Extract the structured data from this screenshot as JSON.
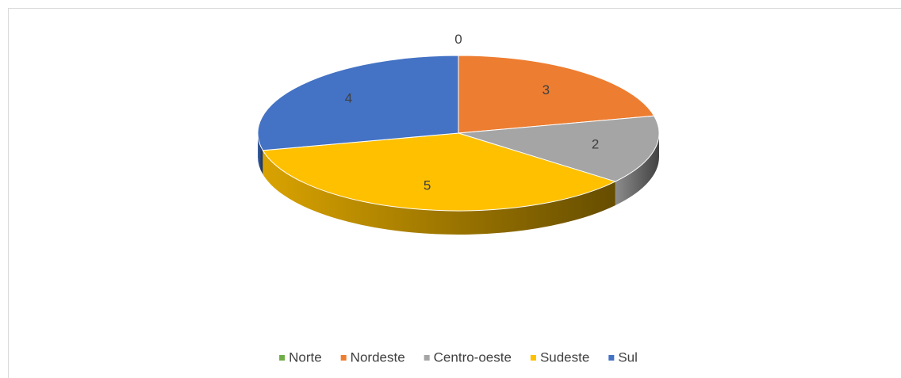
{
  "chart_data": {
    "type": "pie3d",
    "categories": [
      "Norte",
      "Nordeste",
      "Centro-oeste",
      "Sudeste",
      "Sul"
    ],
    "values": [
      0,
      3,
      2,
      5,
      4
    ],
    "colors": [
      "#70ad47",
      "#ed7d31",
      "#a5a5a5",
      "#ffc000",
      "#4472c4"
    ],
    "legend": "bottom"
  }
}
